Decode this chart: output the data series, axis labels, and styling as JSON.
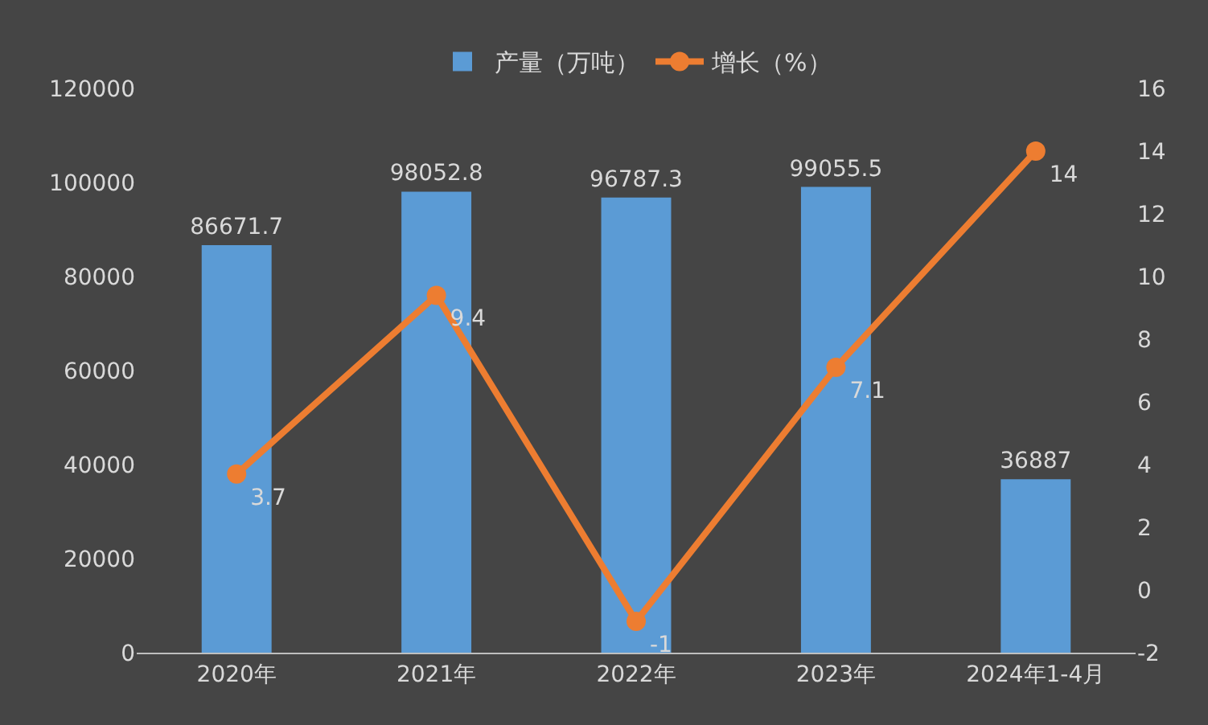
{
  "chart_data": {
    "type": "bar",
    "categories": [
      "2020年",
      "2021年",
      "2022年",
      "2023年",
      "2024年1-4月"
    ],
    "series": [
      {
        "name": "产量（万吨）",
        "color": "#5b9bd5",
        "values": [
          86671.7,
          98052.8,
          96787.3,
          99055.5,
          36887
        ]
      },
      {
        "name": "增长（%）",
        "type": "line",
        "axis": "y2",
        "color": "#ed7d31",
        "values": [
          3.7,
          9.4,
          -1,
          7.1,
          14
        ]
      }
    ],
    "ylim": [
      0,
      120000
    ],
    "yticks": [
      0,
      20000,
      40000,
      60000,
      80000,
      100000,
      120000
    ],
    "y2lim": [
      -2,
      16
    ],
    "y2ticks": [
      -2,
      0,
      2,
      4,
      6,
      8,
      10,
      12,
      14,
      16
    ],
    "data_labels": true,
    "legend": "top",
    "grid": false,
    "marker": "circle",
    "line_style": "solid"
  }
}
